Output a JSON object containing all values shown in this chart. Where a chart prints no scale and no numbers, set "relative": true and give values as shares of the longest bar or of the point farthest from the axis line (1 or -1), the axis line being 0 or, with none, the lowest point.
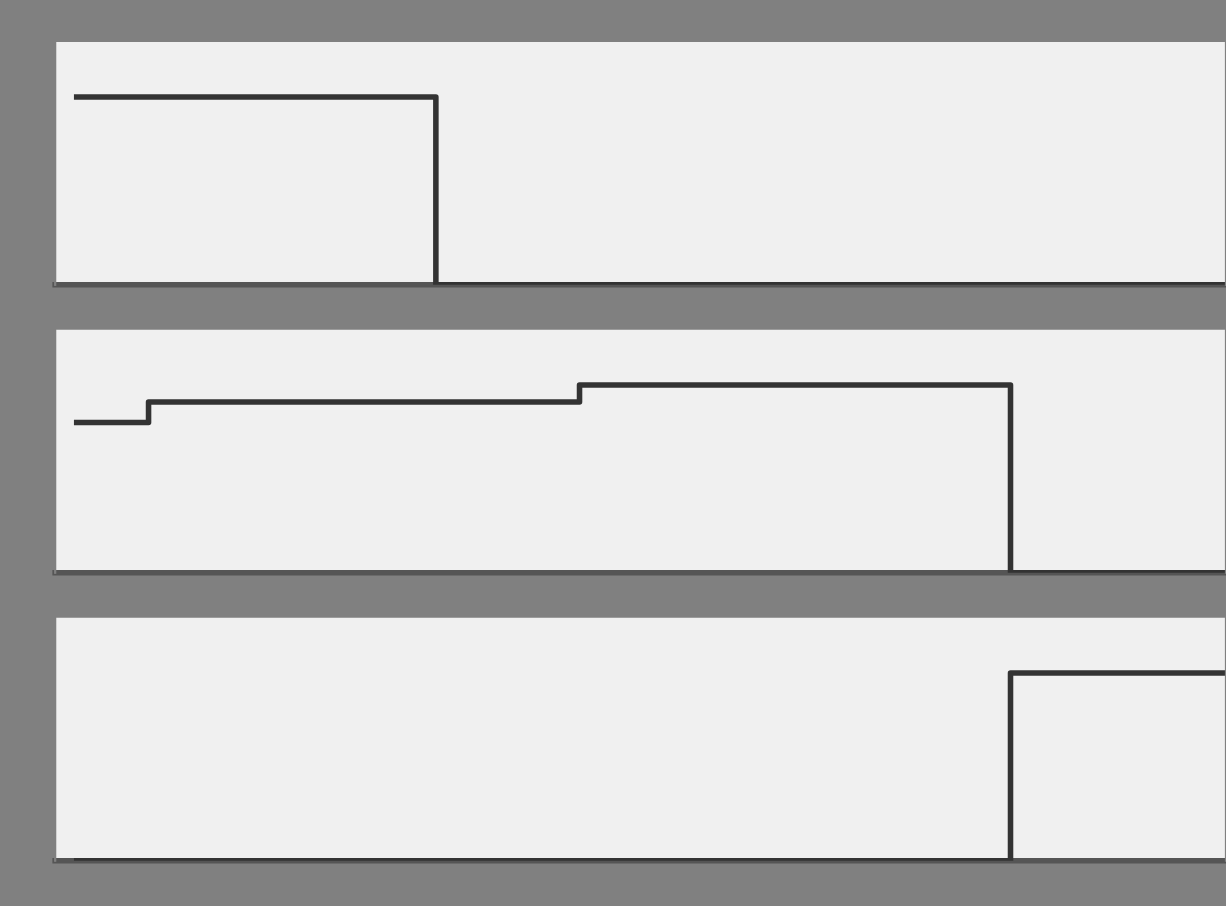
{
  "chart_data": [
    {
      "type": "step",
      "relative": true,
      "categories": [
        null,
        null,
        null,
        null,
        null,
        null,
        null,
        null,
        null,
        null,
        null,
        null,
        null,
        null,
        null,
        null,
        null
      ],
      "series": [
        {
          "color": "#333333",
          "values": [
            1,
            1,
            1,
            1,
            1,
            0,
            0,
            0,
            0,
            0,
            0,
            0,
            0,
            0,
            0,
            0,
            0
          ]
        }
      ]
    },
    {
      "type": "step",
      "relative": true,
      "categories": [
        null,
        null,
        null,
        null,
        null,
        null,
        null,
        null,
        null,
        null,
        null,
        null,
        null,
        null,
        null,
        null,
        null
      ],
      "series": [
        {
          "color": "#333333",
          "values": [
            0.8,
            0.91,
            0.91,
            0.91,
            0.91,
            0.91,
            0.91,
            1,
            1,
            1,
            1,
            1,
            1,
            0,
            0,
            0,
            0
          ]
        }
      ]
    },
    {
      "type": "step",
      "relative": true,
      "categories": [
        null,
        null,
        null,
        null,
        null,
        null,
        null,
        null,
        null,
        null,
        null,
        null,
        null,
        null,
        null,
        null,
        null
      ],
      "series": [
        {
          "color": "#333333",
          "values": [
            0,
            0,
            0,
            0,
            0,
            0,
            0,
            0,
            0,
            0,
            0,
            0,
            0,
            1,
            1,
            1,
            1
          ]
        }
      ]
    }
  ]
}
